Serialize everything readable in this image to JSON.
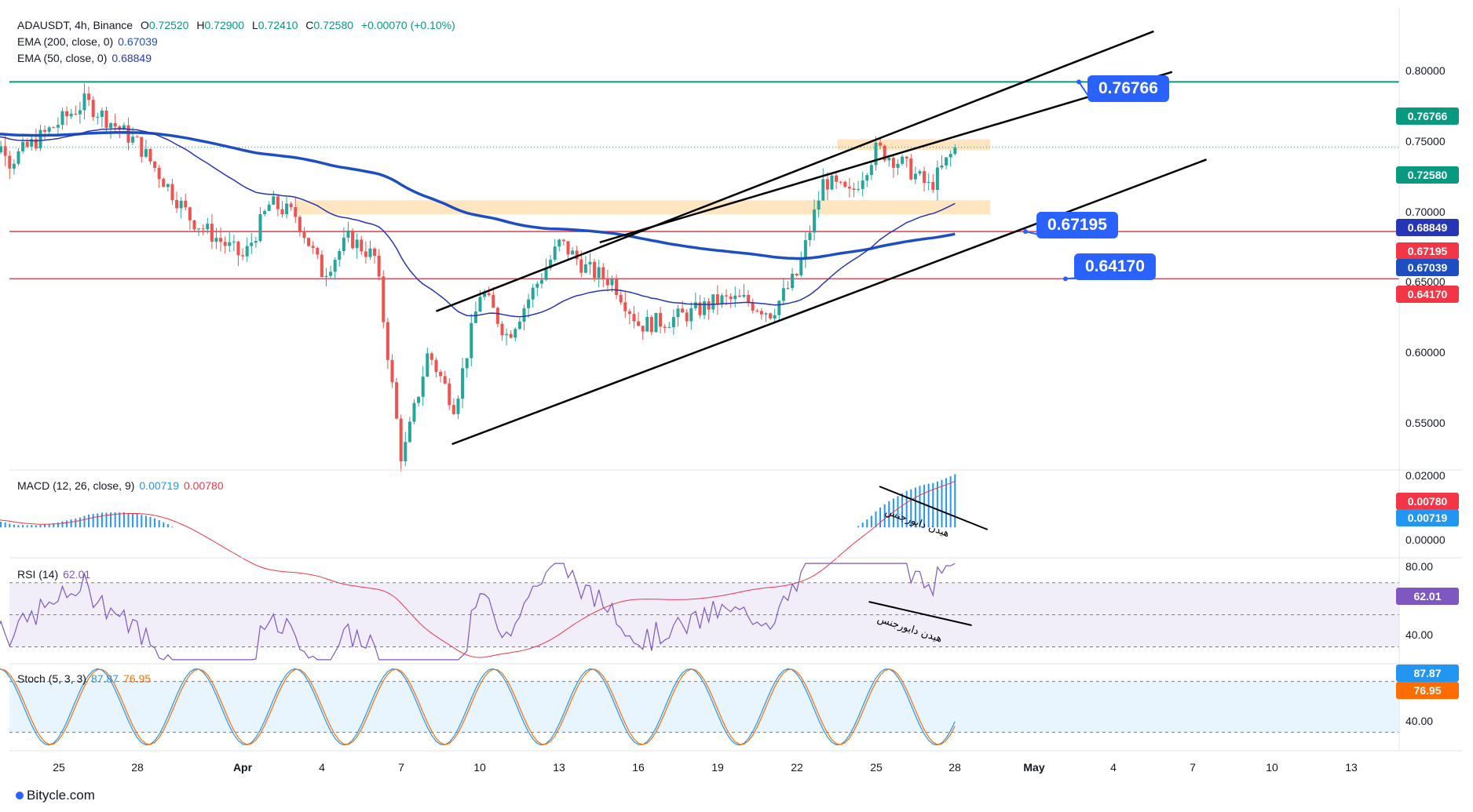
{
  "header": {
    "symbol": "ADAUSDT, 4h, Binance",
    "open_label": "O",
    "open": "0.72520",
    "high_label": "H",
    "high": "0.72900",
    "low_label": "L",
    "low": "0.72410",
    "close_label": "C",
    "close": "0.72580",
    "change": "+0.00070 (+0.10%)",
    "ema200_label": "EMA (200, close, 0)",
    "ema200_value": "0.67039",
    "ema50_label": "EMA (50, close, 0)",
    "ema50_value": "0.68849"
  },
  "colors": {
    "up": "#26a69a",
    "down": "#ef5350",
    "ema200": "#1e4fc2",
    "ema50": "#2635b5",
    "macd": "#2196f3",
    "signal": "#f23645",
    "rsi": "#7e57c2",
    "stoch_k": "#2196f3",
    "stoch_d": "#ff6d00",
    "level": "#f23645",
    "target": "#089981",
    "callout": "#2962ff",
    "zone": "#ffe0b2"
  },
  "price_axis": {
    "ticks": [
      "0.80000",
      "0.75000",
      "0.70000",
      "0.65000",
      "0.60000",
      "0.55000"
    ]
  },
  "price_tags": {
    "target": "0.76766",
    "current": "0.72580",
    "ema50": "0.68849",
    "level1": "0.67195",
    "ema200": "0.67039",
    "level2": "0.64170"
  },
  "callouts": {
    "target": "0.76766",
    "level1": "0.67195",
    "level2": "0.64170"
  },
  "macd": {
    "label": "MACD (12, 26, close, 9)",
    "macd_value": "0.00719",
    "signal_value": "0.00780",
    "ticks": [
      "0.02000",
      "0.00000"
    ],
    "annotation": "هیدن دایورجنس"
  },
  "rsi": {
    "label": "RSI (14)",
    "value": "62.01",
    "ticks": [
      "80.00",
      "40.00"
    ],
    "annotation": "هیدن دایورجنس"
  },
  "stoch": {
    "label": "Stoch (5, 3, 3)",
    "k_value": "87.87",
    "d_value": "76.95",
    "ticks": [
      "40.00"
    ]
  },
  "x_axis": {
    "ticks": [
      "25",
      "28",
      "Apr",
      "4",
      "7",
      "10",
      "13",
      "16",
      "19",
      "22",
      "25",
      "28",
      "May",
      "4",
      "7",
      "10",
      "13"
    ]
  },
  "brand": "Bitycle.com",
  "chart_data": {
    "type": "candlestick",
    "symbol": "ADAUSDT",
    "timeframe": "4h",
    "series": [
      {
        "name": "EMA (200, close, 0)",
        "last": 0.67039
      },
      {
        "name": "EMA (50, close, 0)",
        "last": 0.68849
      },
      {
        "name": "MACD (12, 26, close, 9)",
        "macd": 0.00719,
        "signal": 0.0078
      },
      {
        "name": "RSI (14)",
        "last": 62.01
      },
      {
        "name": "Stoch (5, 3, 3)",
        "k": 87.87,
        "d": 76.95
      }
    ],
    "horizontal_levels": [
      0.76766,
      0.67195,
      0.6417
    ],
    "ylim": [
      0.52,
      0.815
    ],
    "macd_ylim": [
      -0.012,
      0.023
    ],
    "rsi_ylim": [
      20,
      85
    ],
    "stoch_ylim": [
      0,
      100
    ],
    "x_ticks": [
      "25",
      "28",
      "Apr",
      "4",
      "7",
      "10",
      "13",
      "16",
      "19",
      "22",
      "25",
      "28",
      "May",
      "4",
      "7",
      "10",
      "13"
    ],
    "keypoints": [
      {
        "x": "Mar 23",
        "close": 0.715
      },
      {
        "x": "Mar 26",
        "close": 0.755
      },
      {
        "x": "Mar 28",
        "close": 0.728
      },
      {
        "x": "Mar 30",
        "close": 0.68
      },
      {
        "x": "Apr 1",
        "close": 0.655
      },
      {
        "x": "Apr 2",
        "close": 0.69
      },
      {
        "x": "Apr 3",
        "close": 0.682
      },
      {
        "x": "Apr 4",
        "close": 0.645
      },
      {
        "x": "Apr 5",
        "close": 0.668
      },
      {
        "x": "Apr 6",
        "close": 0.655
      },
      {
        "x": "Apr 7",
        "close": 0.525
      },
      {
        "x": "Apr 8",
        "close": 0.595
      },
      {
        "x": "Apr 9",
        "close": 0.56
      },
      {
        "x": "Apr 10",
        "close": 0.635
      },
      {
        "x": "Apr 11",
        "close": 0.605
      },
      {
        "x": "Apr 12",
        "close": 0.635
      },
      {
        "x": "Apr 13",
        "close": 0.665
      },
      {
        "x": "Apr 14",
        "close": 0.648
      },
      {
        "x": "Apr 15",
        "close": 0.64
      },
      {
        "x": "Apr 16",
        "close": 0.612
      },
      {
        "x": "Apr 17",
        "close": 0.615
      },
      {
        "x": "Apr 18",
        "close": 0.62
      },
      {
        "x": "Apr 19",
        "close": 0.628
      },
      {
        "x": "Apr 20",
        "close": 0.628
      },
      {
        "x": "Apr 21",
        "close": 0.62
      },
      {
        "x": "Apr 22",
        "close": 0.645
      },
      {
        "x": "Apr 23",
        "close": 0.705
      },
      {
        "x": "Apr 24",
        "close": 0.695
      },
      {
        "x": "Apr 25",
        "close": 0.725
      },
      {
        "x": "Apr 26",
        "close": 0.715
      },
      {
        "x": "Apr 27",
        "close": 0.7
      },
      {
        "x": "Apr 28",
        "close": 0.7258
      }
    ]
  }
}
